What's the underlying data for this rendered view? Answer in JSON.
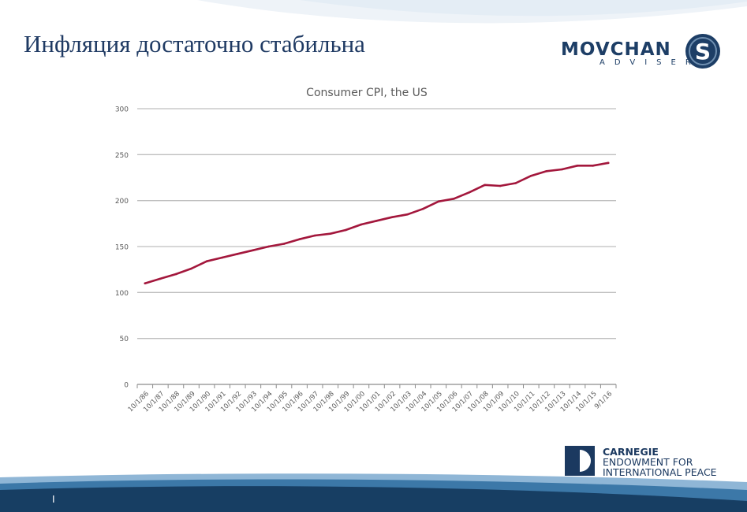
{
  "slide": {
    "title": "Инфляция достаточно стабильна",
    "page_number": "I"
  },
  "logos": {
    "movchan_word": "MOVCHAN",
    "movchan_sub": "ADVISER",
    "carnegie_lines": [
      "CARNEGIE",
      "ENDOWMENT FOR",
      "INTERNATIONAL PEACE"
    ]
  },
  "colors": {
    "title": "#1f3a63",
    "series": "#a3173c",
    "grid": "#bfbfbf",
    "brand_blue": "#1d3e66"
  },
  "chart_data": {
    "type": "line",
    "title": "Consumer CPI, the US",
    "xlabel": "",
    "ylabel": "",
    "ylim": [
      0,
      300
    ],
    "yticks": [
      0,
      50,
      100,
      150,
      200,
      250,
      300
    ],
    "grid": true,
    "legend": "none",
    "categories": [
      "10/1/86",
      "10/1/87",
      "10/1/88",
      "10/1/89",
      "10/1/90",
      "10/1/91",
      "10/1/92",
      "10/1/93",
      "10/1/94",
      "10/1/95",
      "10/1/96",
      "10/1/97",
      "10/1/98",
      "10/1/99",
      "10/1/00",
      "10/1/01",
      "10/1/02",
      "10/1/03",
      "10/1/04",
      "10/1/05",
      "10/1/06",
      "10/1/07",
      "10/1/08",
      "10/1/09",
      "10/1/10",
      "10/1/11",
      "10/1/12",
      "10/1/13",
      "10/1/14",
      "10/1/15",
      "9/1/16"
    ],
    "series": [
      {
        "values": [
          110,
          115,
          120,
          126,
          134,
          138,
          142,
          146,
          150,
          153,
          158,
          162,
          164,
          168,
          174,
          178,
          182,
          185,
          191,
          199,
          202,
          209,
          217,
          216,
          219,
          227,
          232,
          234,
          238,
          238,
          241
        ]
      }
    ]
  }
}
